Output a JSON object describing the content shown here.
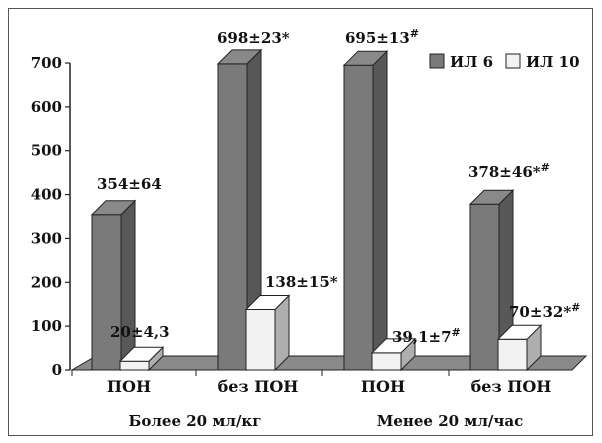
{
  "chart_data": {
    "type": "bar",
    "categories": [
      "ПОН",
      "без ПОН",
      "ПОН",
      "без ПОН"
    ],
    "groups": [
      "Более 20 мл/кг",
      "Менее 20 мл/час"
    ],
    "series": [
      {
        "name": "ИЛ 6",
        "values": [
          354,
          698,
          695,
          378
        ],
        "labels": [
          "354±64",
          "698±23*",
          "695±13",
          "378±46*"
        ],
        "sup": [
          "",
          "",
          "#",
          "#"
        ],
        "color": "#7a7a7a"
      },
      {
        "name": "ИЛ 10",
        "values": [
          20,
          138,
          39.1,
          70
        ],
        "labels": [
          "20±4,3",
          "138±15*",
          "39,1±7",
          "70±32*"
        ],
        "sup": [
          "",
          "",
          "#",
          "#"
        ],
        "color": "#f2f2f2"
      }
    ],
    "yticks": [
      0,
      100,
      200,
      300,
      400,
      500,
      600,
      700
    ],
    "ylim": [
      0,
      700
    ],
    "legend": "top-right",
    "grid": false
  }
}
